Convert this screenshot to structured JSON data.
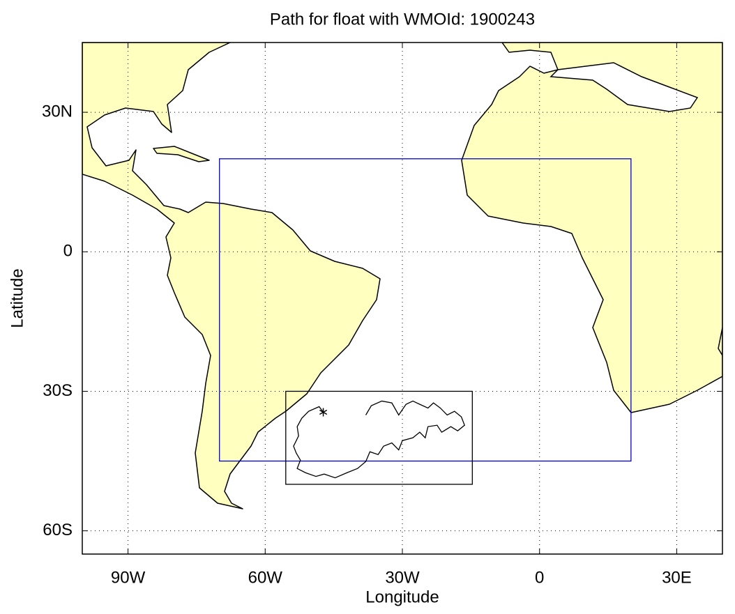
{
  "chart_data": {
    "type": "map",
    "title": "Path for float with WMOId: 1900243",
    "x_label": "Longitude",
    "y_label": "Latitude",
    "xlim": [
      -100,
      40
    ],
    "ylim": [
      -65,
      45
    ],
    "xticks": [
      {
        "value": -90,
        "label": "90W"
      },
      {
        "value": -60,
        "label": "60W"
      },
      {
        "value": -30,
        "label": "30W"
      },
      0,
      {
        "value": 30,
        "label": "30E"
      }
    ],
    "yticks": [
      {
        "value": 30,
        "label": "30N"
      },
      0,
      {
        "value": -30,
        "label": "30S"
      },
      {
        "value": -60,
        "label": "60S"
      }
    ],
    "grid": true,
    "regions": [
      {
        "color": "#0000cc",
        "lon": [
          -70,
          20
        ],
        "lat": [
          -45,
          20
        ]
      },
      {
        "color": "#000000",
        "lon": [
          -55.5,
          -14.7
        ],
        "lat": [
          -50,
          -30
        ]
      }
    ],
    "path": {
      "color": "#000000",
      "lon": [
        -47.3,
        -48.2,
        -50.5,
        -52.0,
        -53.0,
        -52.7,
        -53.8,
        -53.2,
        -52.3,
        -53.0,
        -51.2,
        -48.9,
        -47.1,
        -44.7,
        -42.1,
        -39.8,
        -38.0,
        -37.1,
        -35.3,
        -34.1,
        -32.3,
        -30.8,
        -30.0,
        -27.7,
        -26.2,
        -25.0,
        -24.4,
        -22.4,
        -21.4,
        -19.4,
        -17.9,
        -16.4,
        -17.1,
        -18.6,
        -20.2,
        -21.7,
        -23.2,
        -24.4,
        -26.2,
        -27.7,
        -29.2,
        -30.8,
        -32.3,
        -34.5,
        -36.8,
        -38.0
      ],
      "lat": [
        -34.5,
        -33.3,
        -34.3,
        -35.8,
        -37.6,
        -39.6,
        -41.8,
        -43.3,
        -44.8,
        -46.6,
        -47.5,
        -48.3,
        -47.8,
        -48.6,
        -47.5,
        -46.6,
        -45.1,
        -43.0,
        -43.6,
        -41.8,
        -41.1,
        -42.6,
        -40.6,
        -40.0,
        -38.8,
        -40.0,
        -37.6,
        -37.3,
        -38.8,
        -37.6,
        -38.5,
        -37.3,
        -35.5,
        -34.3,
        -35.1,
        -33.6,
        -32.5,
        -33.6,
        -32.8,
        -32.1,
        -32.8,
        -35.1,
        -32.5,
        -32.1,
        -33.1,
        -35.1
      ]
    }
  }
}
